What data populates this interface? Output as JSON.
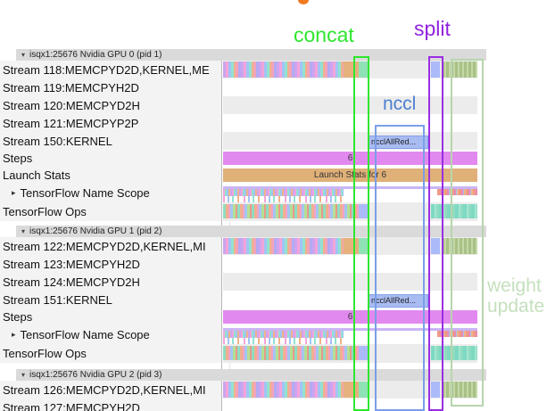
{
  "annotations": {
    "concat": {
      "label": "concat",
      "color": "#2ee62e"
    },
    "split": {
      "label": "split",
      "color": "#8f22e0"
    },
    "nccl": {
      "label": "nccl",
      "color": "#4d7fd1"
    },
    "weight_update": {
      "line1": "weight",
      "line2": "update",
      "color": "#c5e0be"
    }
  },
  "colors": {
    "steps_bar": "#e289ef",
    "launch_bar": "#dfb078",
    "nccl_bar_fill": "#a9bcf2",
    "memcpy_orange": "#e6b17d",
    "memcpy_teal": "#8fe2b5",
    "memcpy_blue": "#abbaf8"
  },
  "sections": [
    {
      "header": "isqx1:25676 Nvidia GPU 0 (pid 1)",
      "rows": [
        {
          "label": "Stream 118:MEMCPYD2D,KERNEL,ME",
          "kind": "stream",
          "shade": "gray",
          "busy": true
        },
        {
          "label": "Stream 119:MEMCPYH2D",
          "kind": "stream",
          "shade": "white"
        },
        {
          "label": "Stream 120:MEMCPYD2H",
          "kind": "stream",
          "shade": "gray"
        },
        {
          "label": "Stream 121:MEMCPYP2P",
          "kind": "stream",
          "shade": "white"
        },
        {
          "label": "Stream 150:KERNEL",
          "kind": "kernel",
          "shade": "gray",
          "bar_label": "ncclAllRed..."
        },
        {
          "label": "Steps",
          "kind": "steps",
          "value": "6"
        },
        {
          "label": "Launch Stats",
          "kind": "launch",
          "value": "Launch Stats for 6"
        },
        {
          "label": "TensorFlow Name Scope",
          "kind": "namescope",
          "expandable": true
        },
        {
          "label": "TensorFlow Ops",
          "kind": "ops",
          "shade": "gray"
        }
      ]
    },
    {
      "header": "isqx1:25676 Nvidia GPU 1 (pid 2)",
      "rows": [
        {
          "label": "Stream 122:MEMCPYD2D,KERNEL,MI",
          "kind": "stream",
          "shade": "gray",
          "busy": true
        },
        {
          "label": "Stream 123:MEMCPYH2D",
          "kind": "stream",
          "shade": "white"
        },
        {
          "label": "Stream 124:MEMCPYD2H",
          "kind": "stream",
          "shade": "gray"
        },
        {
          "label": "Stream 151:KERNEL",
          "kind": "kernel",
          "shade": "white",
          "bar_label": "ncclAllRed..."
        },
        {
          "label": "Steps",
          "kind": "steps",
          "value": "6"
        },
        {
          "label": "TensorFlow Name Scope",
          "kind": "namescope",
          "expandable": true
        },
        {
          "label": "TensorFlow Ops",
          "kind": "ops",
          "shade": "gray"
        }
      ]
    },
    {
      "header": "isqx1:25676 Nvidia GPU 2 (pid 3)",
      "rows": [
        {
          "label": "Stream 126:MEMCPYD2D,KERNEL,MI",
          "kind": "stream",
          "shade": "gray",
          "busy": true
        },
        {
          "label": "Stream 127:MEMCPYH2D",
          "kind": "stream",
          "shade": "white"
        }
      ]
    }
  ]
}
